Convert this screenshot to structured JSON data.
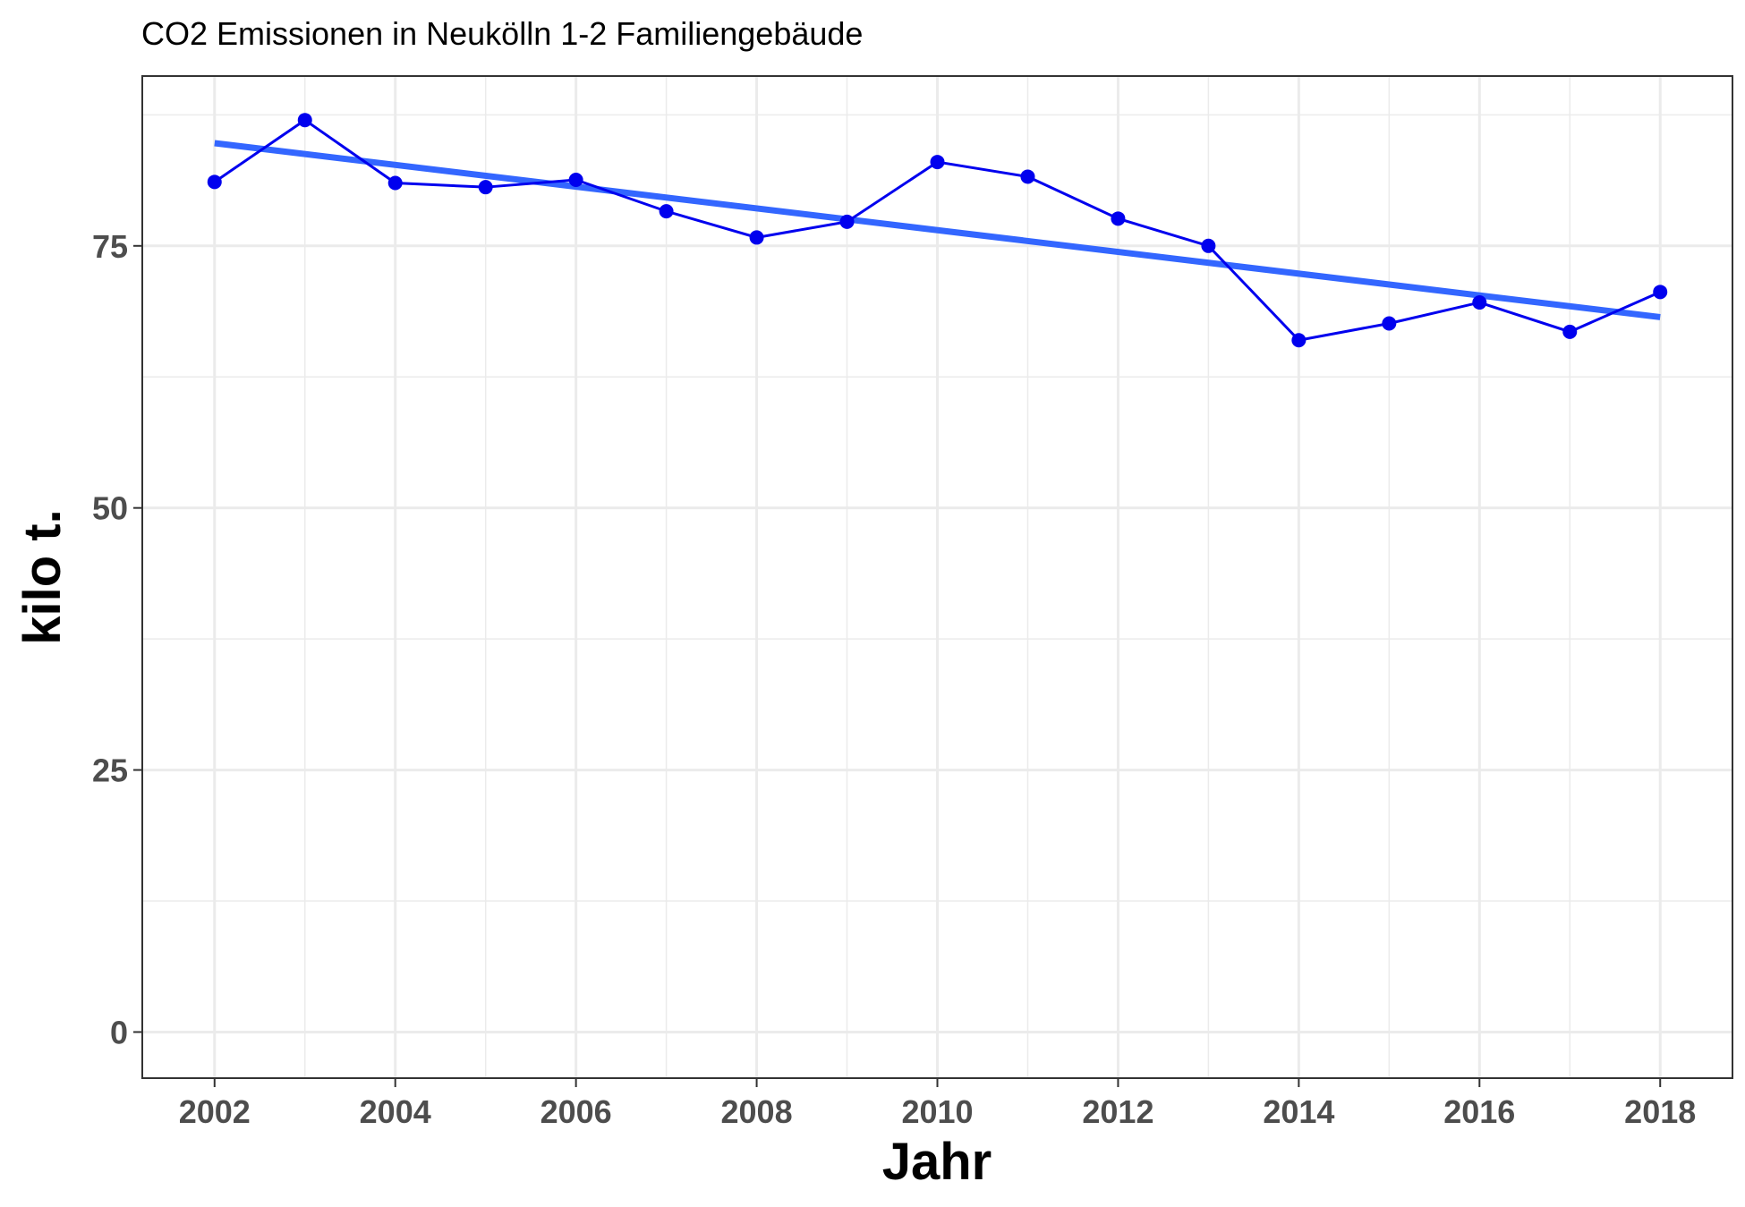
{
  "chart_data": {
    "type": "line",
    "title": "CO2 Emissionen in Neukölln 1-2 Familiengebäude",
    "xlabel": "Jahr",
    "ylabel": "kilo t.",
    "x": [
      2002,
      2003,
      2004,
      2005,
      2006,
      2007,
      2008,
      2009,
      2010,
      2011,
      2012,
      2013,
      2014,
      2015,
      2016,
      2017,
      2018
    ],
    "series": [
      {
        "values": [
          81.1,
          87.0,
          81.0,
          80.6,
          81.3,
          78.3,
          75.8,
          77.3,
          83.0,
          81.6,
          77.6,
          75.0,
          66.0,
          67.6,
          69.6,
          66.8,
          70.6
        ],
        "color": "#0000ee"
      }
    ],
    "trend": {
      "x": [
        2002,
        2018
      ],
      "y": [
        84.8,
        68.2
      ],
      "color": "#3366ff"
    },
    "xticks": [
      "2002",
      "2004",
      "2006",
      "2008",
      "2010",
      "2012",
      "2014",
      "2016",
      "2018"
    ],
    "yticks": [
      "0",
      "25",
      "50",
      "75"
    ],
    "xlim": [
      2001.2,
      2018.8
    ],
    "ylim": [
      -4.4,
      91.2
    ],
    "grid": true
  }
}
